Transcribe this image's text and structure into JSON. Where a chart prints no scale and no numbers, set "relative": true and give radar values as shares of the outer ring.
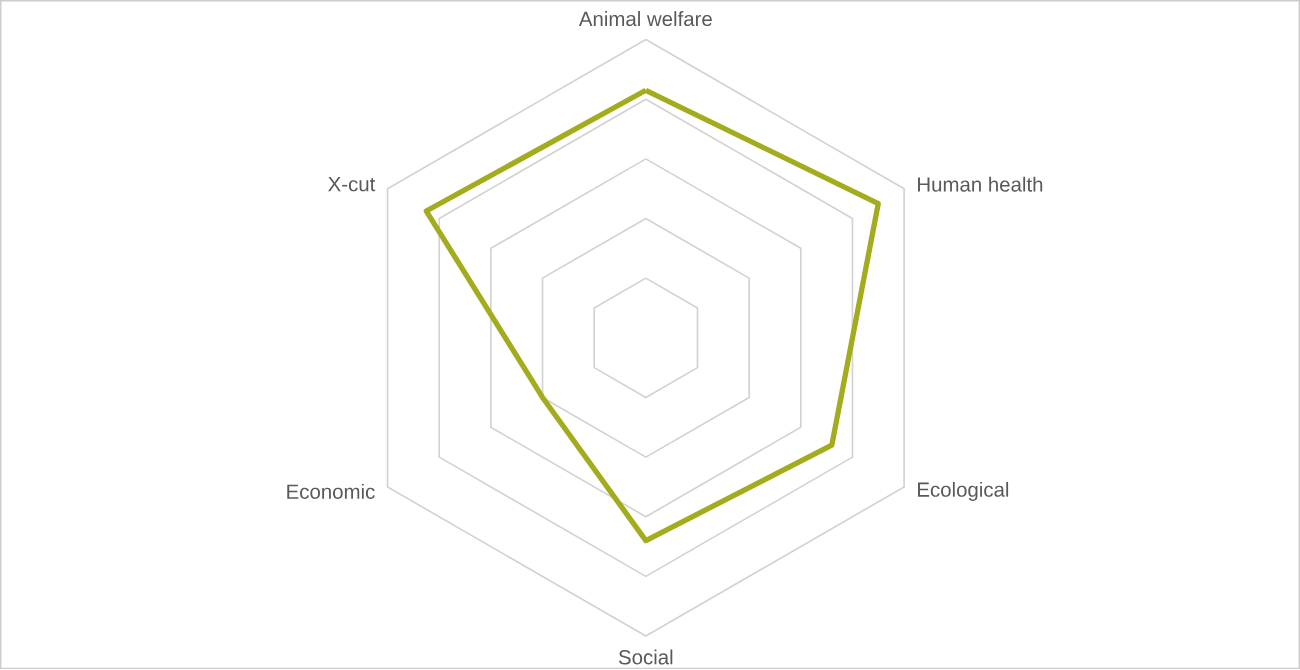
{
  "chart_data": {
    "type": "radar",
    "relative": true,
    "grid": true,
    "categories": [
      "Animal welfare",
      "Human health",
      "Ecological",
      "Social",
      "Economic",
      "X-cut"
    ],
    "series": [
      {
        "color": "#a3ac1c",
        "values": [
          0.83,
          0.9,
          0.72,
          0.68,
          0.4,
          0.85
        ]
      }
    ]
  }
}
